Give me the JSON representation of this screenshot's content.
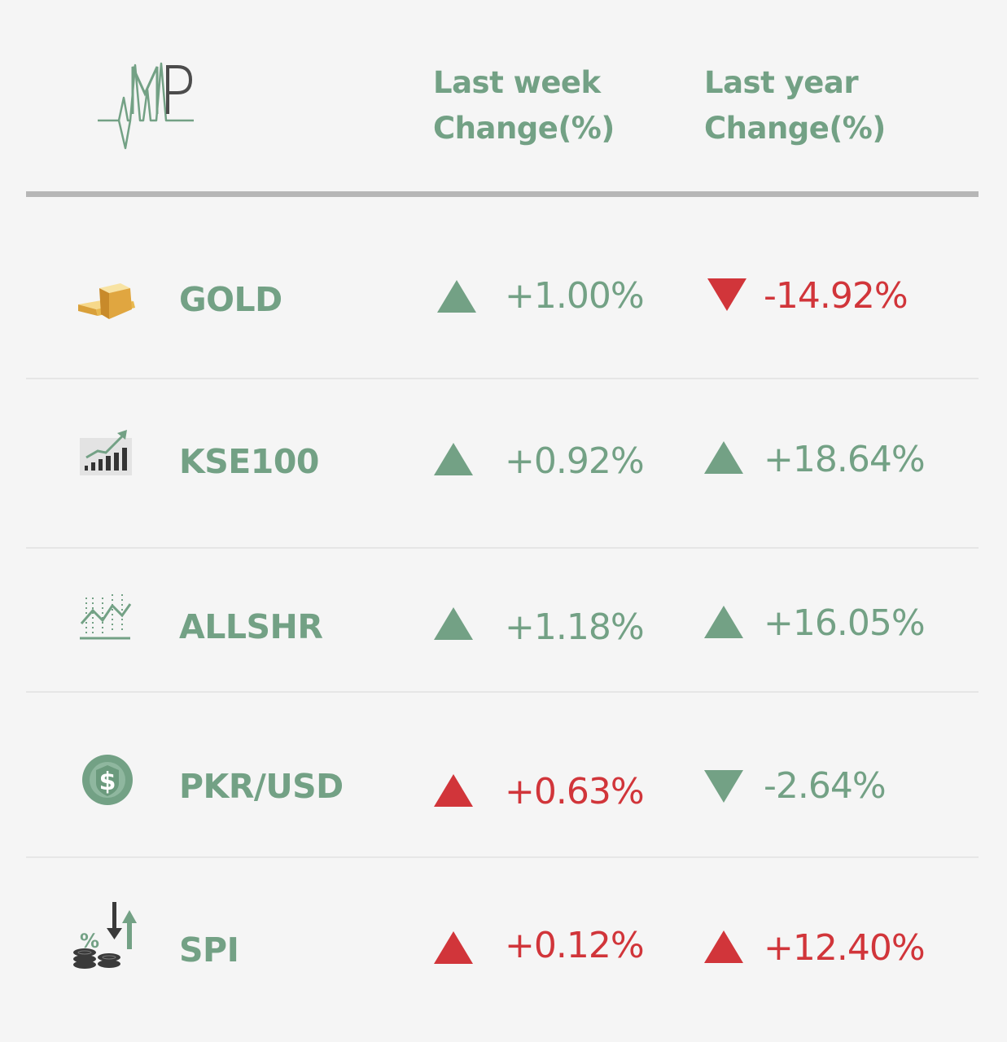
{
  "colors": {
    "green": "#73a185",
    "red": "#d1353a",
    "rule": "#b6b6b6"
  },
  "header": {
    "logo_text": "MP",
    "col_week_line1": "Last week",
    "col_week_line2": "Change(%)",
    "col_year_line1": "Last year",
    "col_year_line2": "Change(%)"
  },
  "rows": [
    {
      "name": "GOLD",
      "icon": "gold-bars-icon",
      "week": {
        "value": "+1.00%",
        "direction": "up",
        "color": "#73a185"
      },
      "year": {
        "value": "-14.92%",
        "direction": "down",
        "color": "#d1353a"
      }
    },
    {
      "name": "KSE100",
      "icon": "bar-chart-rising-icon",
      "week": {
        "value": "+0.92%",
        "direction": "up",
        "color": "#73a185"
      },
      "year": {
        "value": "+18.64%",
        "direction": "up",
        "color": "#73a185"
      }
    },
    {
      "name": "ALLSHR",
      "icon": "line-chart-icon",
      "week": {
        "value": "+1.18%",
        "direction": "up",
        "color": "#73a185"
      },
      "year": {
        "value": "+16.05%",
        "direction": "up",
        "color": "#73a185"
      }
    },
    {
      "name": "PKR/USD",
      "icon": "dollar-coin-icon",
      "week": {
        "value": "+0.63%",
        "direction": "up",
        "color": "#d1353a"
      },
      "year": {
        "value": "-2.64%",
        "direction": "down",
        "color": "#73a185"
      }
    },
    {
      "name": "SPI",
      "icon": "percent-coins-arrows-icon",
      "week": {
        "value": "+0.12%",
        "direction": "up",
        "color": "#d1353a"
      },
      "year": {
        "value": "+12.40%",
        "direction": "up",
        "color": "#d1353a"
      }
    }
  ]
}
